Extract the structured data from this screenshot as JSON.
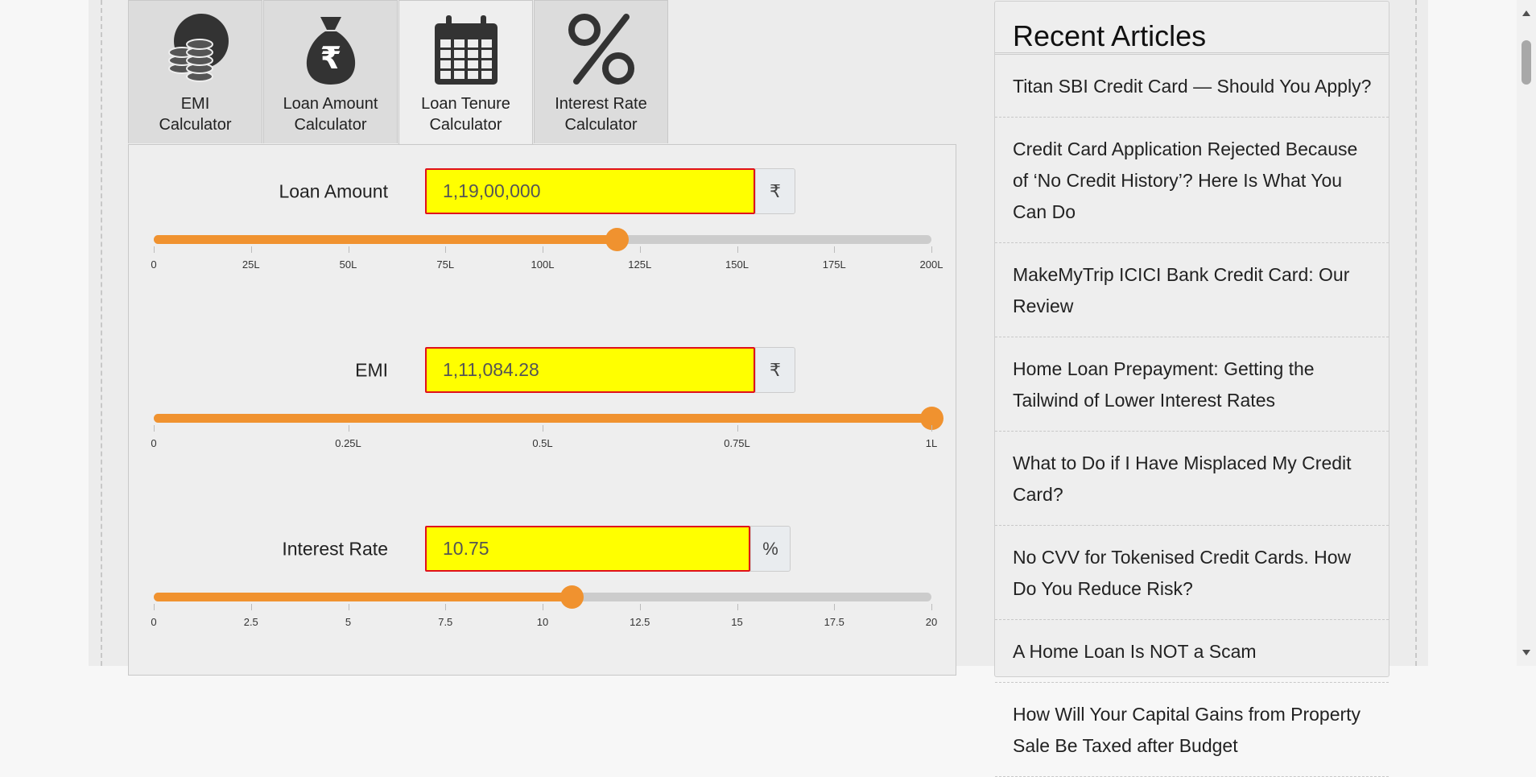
{
  "tabs": [
    {
      "label": [
        "EMI",
        "Calculator"
      ]
    },
    {
      "label": [
        "Loan Amount",
        "Calculator"
      ]
    },
    {
      "label": [
        "Loan Tenure",
        "Calculator"
      ]
    },
    {
      "label": [
        "Interest Rate",
        "Calculator"
      ]
    }
  ],
  "fields": [
    {
      "label": "Loan Amount",
      "value": "1,19,00,000",
      "unit": "₹",
      "ticks": [
        "0",
        "25L",
        "50L",
        "75L",
        "100L",
        "125L",
        "150L",
        "175L",
        "200L"
      ]
    },
    {
      "label": "EMI",
      "value": "1,11,084.28",
      "unit": "₹",
      "ticks": [
        "0",
        "0.25L",
        "0.5L",
        "0.75L",
        "1L"
      ]
    },
    {
      "label": "Interest Rate",
      "value": "10.75",
      "unit": "%",
      "ticks": [
        "0",
        "2.5",
        "5",
        "7.5",
        "10",
        "12.5",
        "15",
        "17.5",
        "20"
      ]
    }
  ],
  "sidebar": {
    "title": "Recent Articles",
    "articles": [
      "Titan SBI Credit Card — Should You Apply?",
      "Credit Card Application Rejected Because of ‘No Credit History’? Here Is What You Can Do",
      "MakeMyTrip ICICI Bank Credit Card: Our Review",
      "Home Loan Prepayment: Getting the Tailwind of Lower Interest Rates",
      "What to Do if I Have Misplaced My Credit Card?",
      "No CVV for Tokenised Credit Cards. How Do You Reduce Risk?",
      "A Home Loan Is NOT a Scam",
      "How Will Your Capital Gains from Property Sale Be Taxed after Budget"
    ]
  }
}
